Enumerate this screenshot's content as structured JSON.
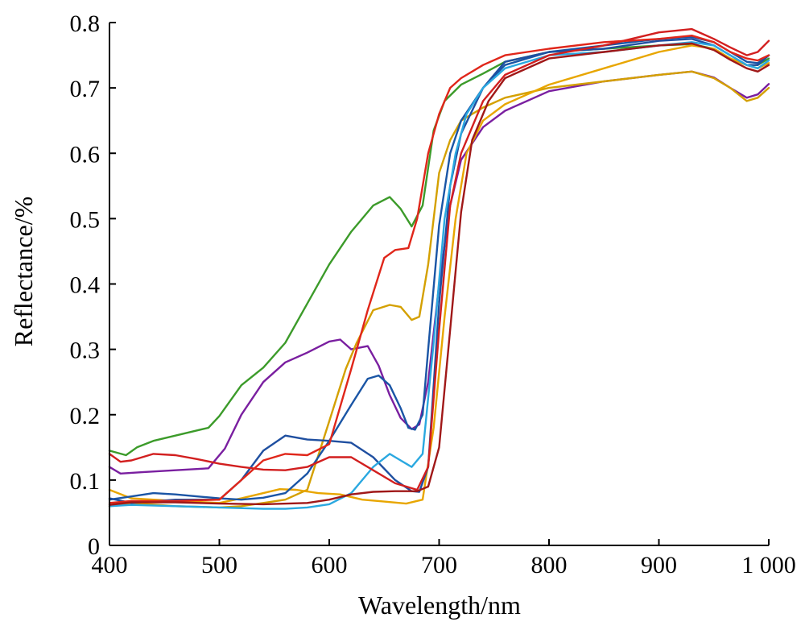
{
  "chart_data": {
    "type": "line",
    "title": "",
    "xlabel": "Wavelength/nm",
    "ylabel": "Reflectance/%",
    "xlim": [
      400,
      1000
    ],
    "ylim": [
      0,
      0.8
    ],
    "xticks": [
      400,
      500,
      600,
      700,
      800,
      900,
      1000
    ],
    "xtick_labels": [
      "400",
      "500",
      "600",
      "700",
      "800",
      "900",
      "1 000"
    ],
    "yticks": [
      0,
      0.1,
      0.2,
      0.3,
      0.4,
      0.5,
      0.6,
      0.7,
      0.8
    ],
    "ytick_labels": [
      "0",
      "0.1",
      "0.2",
      "0.3",
      "0.4",
      "0.5",
      "0.6",
      "0.7",
      "0.8"
    ],
    "grid": false,
    "legend": "none",
    "series": [
      {
        "color": "#3c9b2a",
        "x": [
          400,
          415,
          425,
          440,
          460,
          480,
          490,
          500,
          520,
          540,
          560,
          580,
          600,
          620,
          640,
          655,
          665,
          675,
          685,
          695,
          705,
          720,
          740,
          760,
          800,
          850,
          900,
          930,
          950,
          965,
          980,
          990,
          1000
        ],
        "y": [
          0.145,
          0.138,
          0.15,
          0.16,
          0.168,
          0.176,
          0.18,
          0.198,
          0.245,
          0.272,
          0.31,
          0.37,
          0.43,
          0.48,
          0.52,
          0.533,
          0.515,
          0.488,
          0.52,
          0.635,
          0.68,
          0.705,
          0.722,
          0.74,
          0.755,
          0.76,
          0.765,
          0.767,
          0.76,
          0.745,
          0.735,
          0.735,
          0.745
        ]
      },
      {
        "color": "#7a1fa0",
        "x": [
          400,
          410,
          430,
          460,
          490,
          505,
          520,
          540,
          560,
          580,
          600,
          610,
          620,
          635,
          645,
          655,
          665,
          675,
          682,
          690,
          700,
          710,
          720,
          740,
          760,
          800,
          850,
          900,
          930,
          950,
          965,
          980,
          990,
          1000
        ],
        "y": [
          0.12,
          0.11,
          0.112,
          0.115,
          0.118,
          0.148,
          0.2,
          0.25,
          0.28,
          0.295,
          0.312,
          0.315,
          0.3,
          0.305,
          0.275,
          0.23,
          0.195,
          0.178,
          0.185,
          0.25,
          0.4,
          0.52,
          0.59,
          0.64,
          0.665,
          0.695,
          0.71,
          0.72,
          0.725,
          0.716,
          0.7,
          0.685,
          0.69,
          0.706
        ]
      },
      {
        "color": "#d4a000",
        "x": [
          400,
          420,
          460,
          500,
          520,
          540,
          560,
          580,
          600,
          615,
          625,
          640,
          655,
          665,
          675,
          682,
          690,
          700,
          710,
          720,
          740,
          760,
          800,
          850,
          900,
          930,
          950,
          965,
          980,
          990,
          1000
        ],
        "y": [
          0.06,
          0.065,
          0.06,
          0.058,
          0.06,
          0.065,
          0.07,
          0.085,
          0.19,
          0.27,
          0.31,
          0.36,
          0.368,
          0.365,
          0.345,
          0.35,
          0.43,
          0.57,
          0.62,
          0.65,
          0.67,
          0.685,
          0.7,
          0.71,
          0.72,
          0.725,
          0.715,
          0.7,
          0.68,
          0.685,
          0.7
        ]
      },
      {
        "color": "#e8a600",
        "x": [
          400,
          420,
          460,
          500,
          520,
          540,
          555,
          570,
          590,
          610,
          630,
          650,
          670,
          685,
          695,
          705,
          715,
          725,
          740,
          760,
          800,
          850,
          900,
          930,
          950,
          965,
          980,
          990,
          1000
        ],
        "y": [
          0.085,
          0.072,
          0.068,
          0.065,
          0.072,
          0.08,
          0.086,
          0.085,
          0.08,
          0.078,
          0.07,
          0.067,
          0.064,
          0.07,
          0.18,
          0.35,
          0.5,
          0.6,
          0.65,
          0.675,
          0.705,
          0.73,
          0.755,
          0.765,
          0.76,
          0.745,
          0.735,
          0.73,
          0.738
        ]
      },
      {
        "color": "#1a55a5",
        "x": [
          400,
          420,
          440,
          460,
          480,
          500,
          520,
          540,
          560,
          580,
          600,
          620,
          635,
          645,
          655,
          665,
          672,
          678,
          685,
          690,
          700,
          710,
          720,
          740,
          760,
          800,
          850,
          900,
          930,
          950,
          965,
          980,
          990,
          1000
        ],
        "y": [
          0.07,
          0.075,
          0.08,
          0.078,
          0.075,
          0.072,
          0.07,
          0.073,
          0.08,
          0.11,
          0.16,
          0.215,
          0.255,
          0.26,
          0.245,
          0.21,
          0.18,
          0.177,
          0.2,
          0.3,
          0.49,
          0.6,
          0.65,
          0.7,
          0.735,
          0.755,
          0.765,
          0.775,
          0.778,
          0.77,
          0.755,
          0.74,
          0.738,
          0.75
        ]
      },
      {
        "color": "#1f4fa0",
        "x": [
          400,
          420,
          460,
          500,
          520,
          540,
          560,
          580,
          600,
          620,
          640,
          660,
          675,
          682,
          690,
          700,
          710,
          720,
          740,
          760,
          800,
          850,
          900,
          930,
          950,
          965,
          980,
          990,
          1000
        ],
        "y": [
          0.072,
          0.065,
          0.07,
          0.07,
          0.1,
          0.145,
          0.168,
          0.162,
          0.16,
          0.157,
          0.135,
          0.1,
          0.083,
          0.082,
          0.12,
          0.37,
          0.55,
          0.63,
          0.7,
          0.74,
          0.755,
          0.76,
          0.772,
          0.775,
          0.765,
          0.75,
          0.735,
          0.735,
          0.75
        ]
      },
      {
        "color": "#2aa8e0",
        "x": [
          400,
          420,
          460,
          500,
          540,
          560,
          580,
          600,
          620,
          640,
          655,
          665,
          675,
          685,
          695,
          705,
          715,
          725,
          740,
          760,
          800,
          850,
          900,
          930,
          950,
          965,
          980,
          990,
          1000
        ],
        "y": [
          0.06,
          0.062,
          0.06,
          0.058,
          0.056,
          0.056,
          0.058,
          0.063,
          0.08,
          0.12,
          0.14,
          0.13,
          0.12,
          0.14,
          0.31,
          0.5,
          0.6,
          0.66,
          0.7,
          0.73,
          0.75,
          0.755,
          0.765,
          0.77,
          0.765,
          0.75,
          0.735,
          0.73,
          0.742
        ]
      },
      {
        "color": "#d21f1f",
        "x": [
          400,
          410,
          420,
          440,
          460,
          480,
          500,
          520,
          540,
          560,
          580,
          600,
          620,
          640,
          660,
          680,
          690,
          700,
          710,
          720,
          740,
          760,
          800,
          850,
          900,
          930,
          950,
          965,
          980,
          990,
          1000
        ],
        "y": [
          0.14,
          0.128,
          0.13,
          0.14,
          0.138,
          0.132,
          0.125,
          0.12,
          0.116,
          0.115,
          0.12,
          0.135,
          0.135,
          0.115,
          0.095,
          0.085,
          0.12,
          0.33,
          0.52,
          0.6,
          0.68,
          0.72,
          0.75,
          0.765,
          0.785,
          0.79,
          0.775,
          0.762,
          0.75,
          0.755,
          0.772
        ]
      },
      {
        "color": "#e0261a",
        "x": [
          400,
          420,
          460,
          500,
          520,
          540,
          560,
          580,
          600,
          620,
          635,
          650,
          660,
          672,
          680,
          690,
          700,
          710,
          720,
          740,
          760,
          800,
          850,
          900,
          930,
          950,
          965,
          980,
          990,
          1000
        ],
        "y": [
          0.065,
          0.068,
          0.068,
          0.07,
          0.1,
          0.13,
          0.14,
          0.138,
          0.155,
          0.27,
          0.36,
          0.44,
          0.452,
          0.455,
          0.5,
          0.6,
          0.66,
          0.7,
          0.715,
          0.735,
          0.75,
          0.76,
          0.77,
          0.775,
          0.78,
          0.77,
          0.755,
          0.745,
          0.742,
          0.75
        ]
      },
      {
        "color": "#a01818",
        "x": [
          400,
          420,
          460,
          500,
          540,
          580,
          600,
          620,
          640,
          660,
          680,
          690,
          700,
          710,
          720,
          730,
          745,
          760,
          800,
          850,
          900,
          930,
          950,
          965,
          980,
          990,
          1000
        ],
        "y": [
          0.062,
          0.066,
          0.066,
          0.064,
          0.063,
          0.065,
          0.07,
          0.078,
          0.082,
          0.083,
          0.083,
          0.09,
          0.15,
          0.33,
          0.51,
          0.62,
          0.68,
          0.715,
          0.745,
          0.755,
          0.765,
          0.768,
          0.758,
          0.743,
          0.73,
          0.725,
          0.735
        ]
      }
    ]
  }
}
